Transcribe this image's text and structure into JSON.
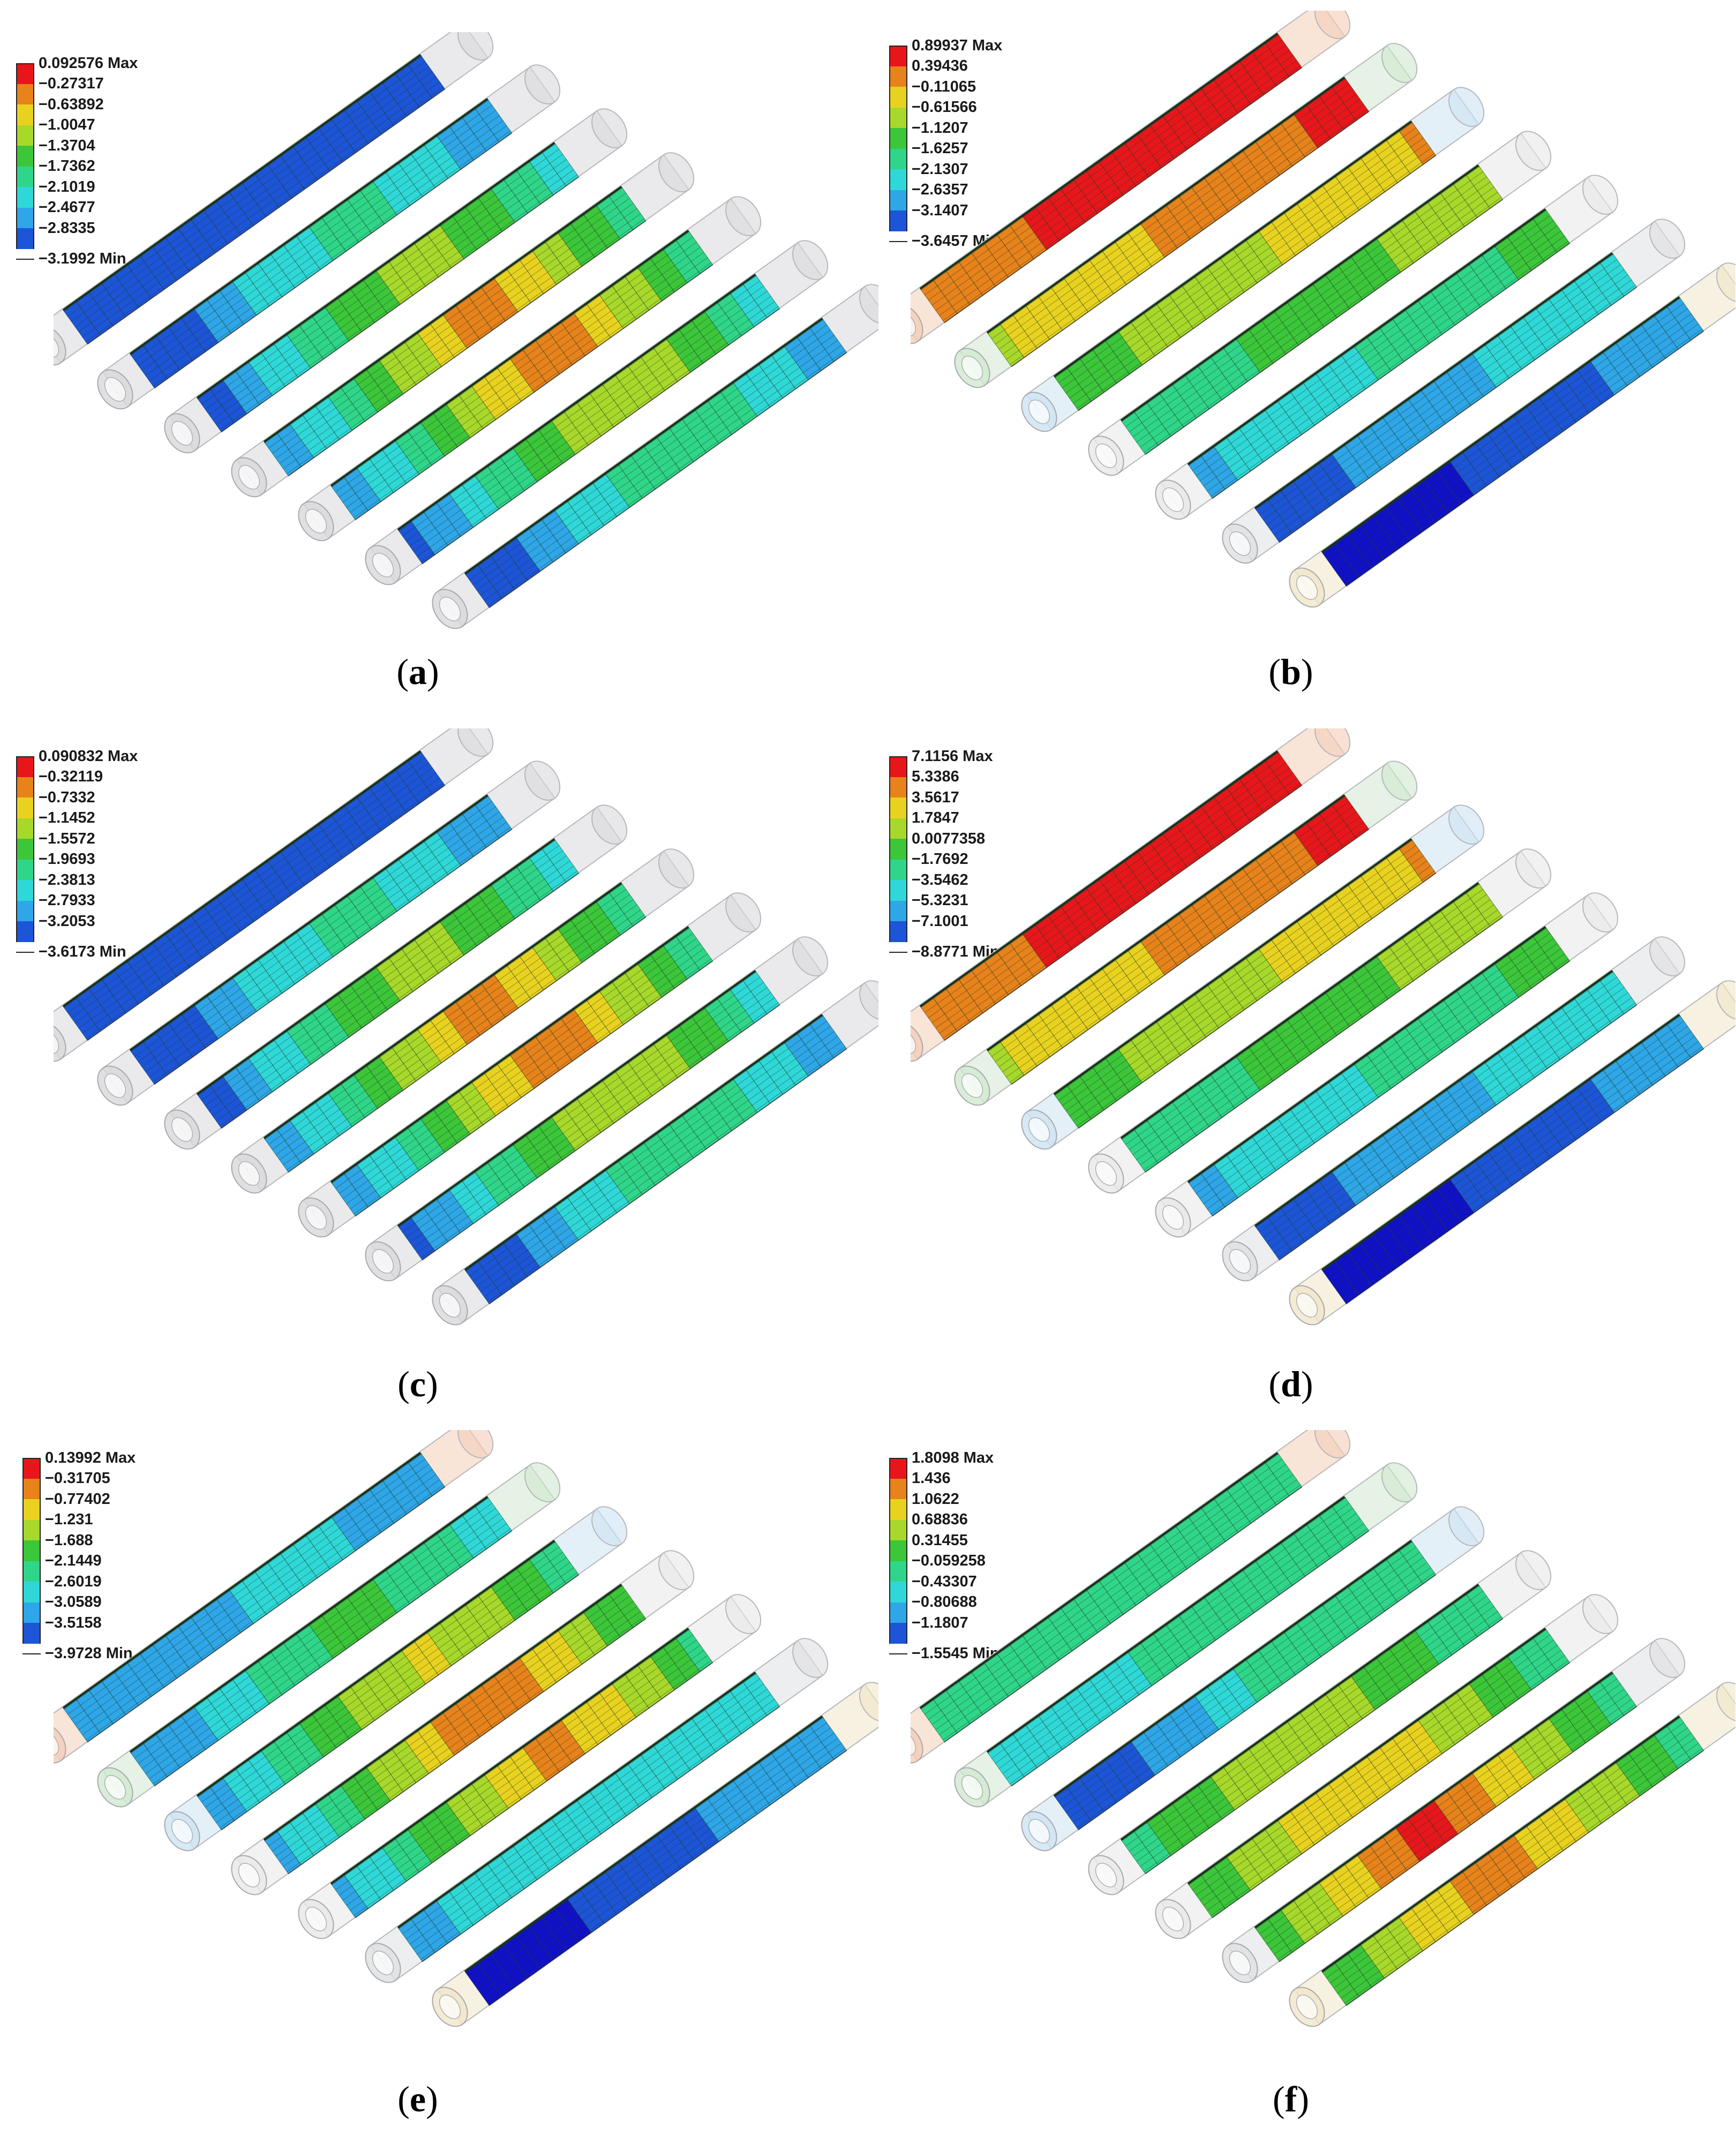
{
  "figure": {
    "panels": [
      {
        "id": "a",
        "caption": "a",
        "legend": [
          "0.092576 Max",
          "−0.27317",
          "−0.63892",
          "−1.0047",
          "−1.3704",
          "−1.7362",
          "−2.1019",
          "−2.4677",
          "−2.8335",
          "−3.1992 Min"
        ],
        "pattern": "center-hot",
        "tube_tint": "gray"
      },
      {
        "id": "b",
        "caption": "b",
        "legend": [
          "0.89937 Max",
          "0.39436",
          "−0.11065",
          "−0.61566",
          "−1.1207",
          "−1.6257",
          "−2.1307",
          "−2.6357",
          "−3.1407",
          "−3.6457 Min"
        ],
        "pattern": "gradient-hot-top",
        "tube_tint": "pastel"
      },
      {
        "id": "c",
        "caption": "c",
        "legend": [
          "0.090832 Max",
          "−0.32119",
          "−0.7332",
          "−1.1452",
          "−1.5572",
          "−1.9693",
          "−2.3813",
          "−2.7933",
          "−3.2053",
          "−3.6173 Min"
        ],
        "pattern": "center-hot",
        "tube_tint": "gray"
      },
      {
        "id": "d",
        "caption": "d",
        "legend": [
          "7.1156 Max",
          "5.3386",
          "3.5617",
          "1.7847",
          "0.0077358",
          "−1.7692",
          "−3.5462",
          "−5.3231",
          "−7.1001",
          "−8.8771 Min"
        ],
        "pattern": "gradient-hot-top",
        "tube_tint": "pastel"
      },
      {
        "id": "e",
        "caption": "e",
        "legend": [
          "0.13992 Max",
          "−0.31705",
          "−0.77402",
          "−1.231",
          "−1.688",
          "−2.1449",
          "−2.6019",
          "−3.0589",
          "−3.5158",
          "−3.9728 Min"
        ],
        "pattern": "center-hot-cold-edge",
        "tube_tint": "pastel"
      },
      {
        "id": "f",
        "caption": "f",
        "legend": [
          "1.8098 Max",
          "1.436",
          "1.0622",
          "0.68836",
          "0.31455",
          "−0.059258",
          "−0.43307",
          "−0.80688",
          "−1.1807",
          "−1.5545 Min"
        ],
        "pattern": "right-hot",
        "tube_tint": "pastel"
      }
    ],
    "colormap": [
      "#e8161b",
      "#e8821b",
      "#e9d21f",
      "#a8d82a",
      "#3cc63a",
      "#2fd68a",
      "#2fd8d8",
      "#2ea6e8",
      "#1c55d8",
      "#1010c8"
    ]
  }
}
